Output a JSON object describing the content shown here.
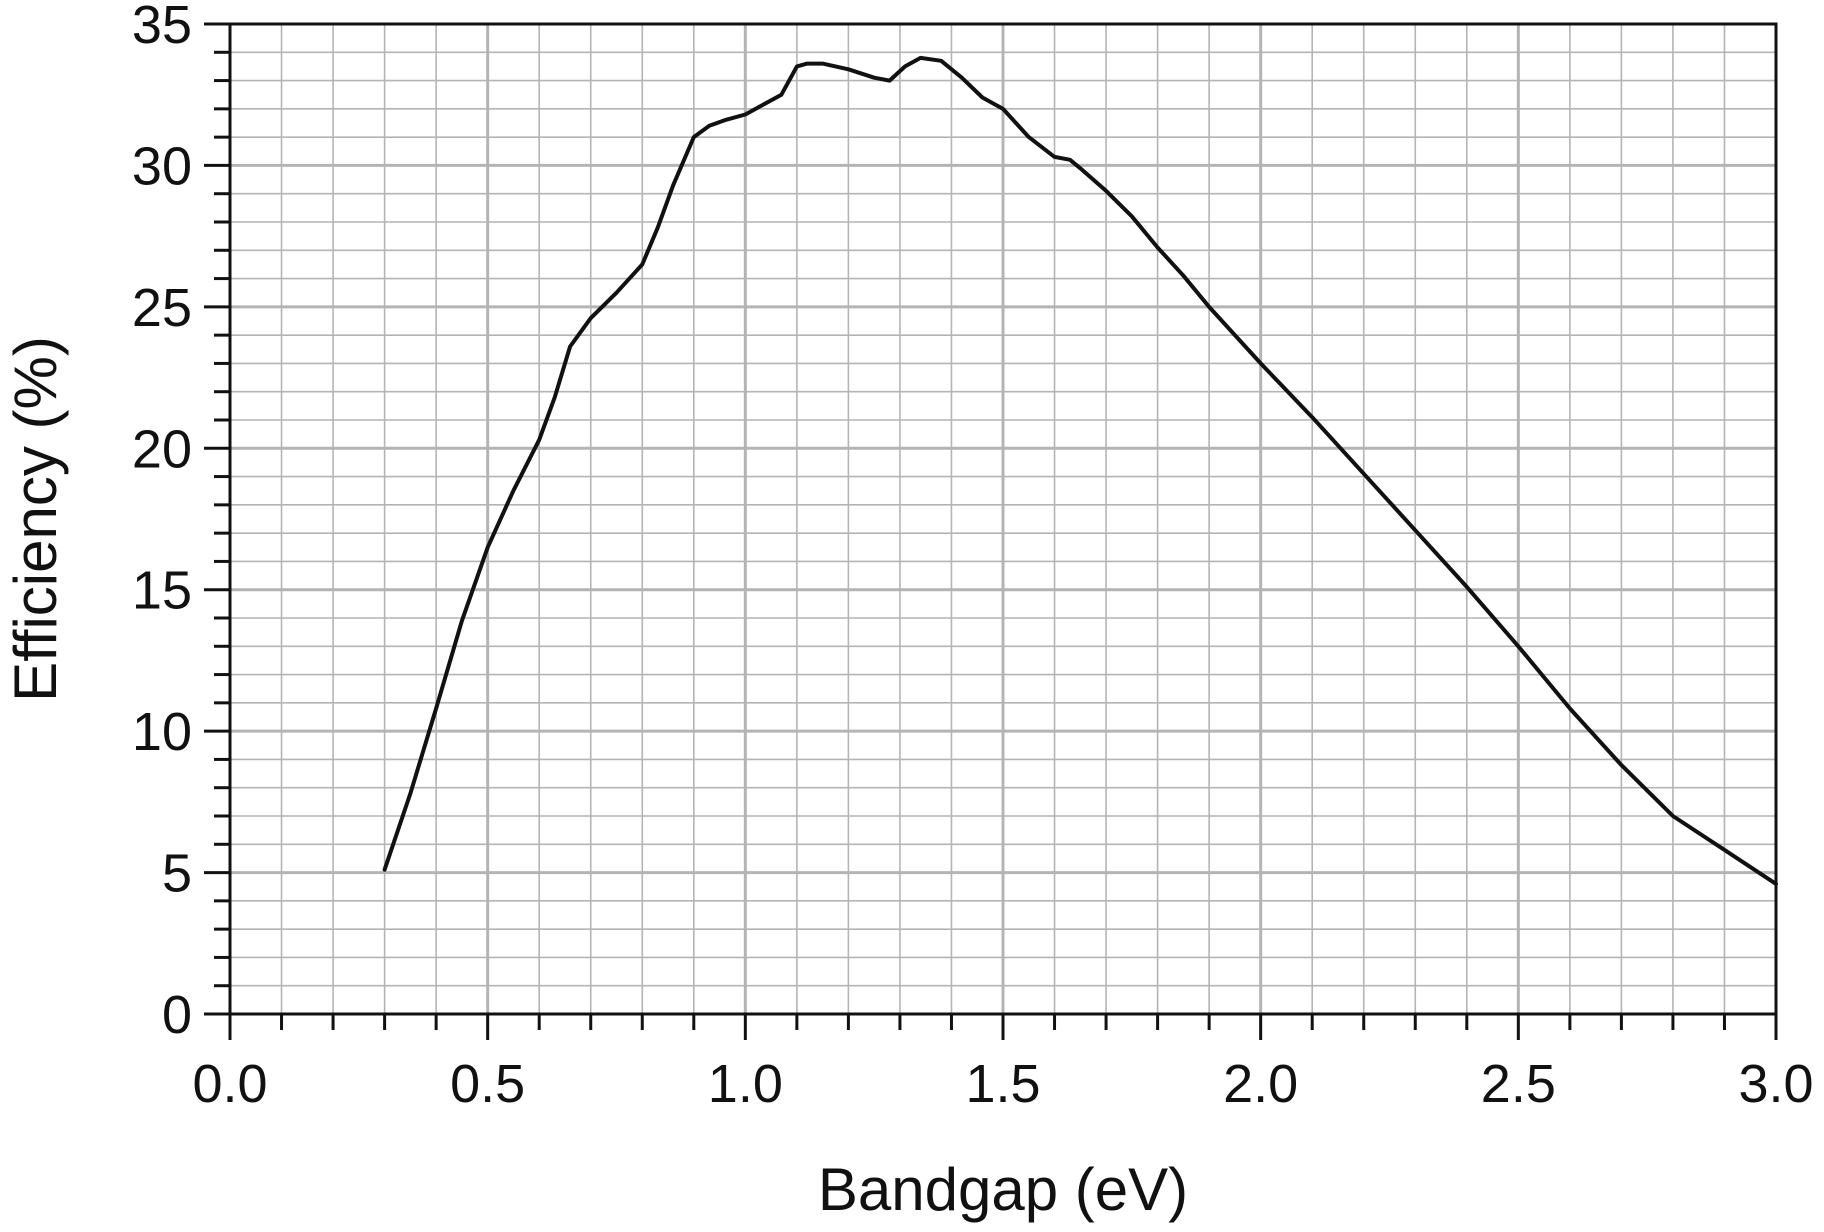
{
  "chart_data": {
    "type": "line",
    "title": "",
    "xlabel": "Bandgap (eV)",
    "ylabel": "Efficiency (%)",
    "xlim": [
      0.0,
      3.0
    ],
    "ylim": [
      0,
      35
    ],
    "x_major_ticks": [
      0.0,
      0.5,
      1.0,
      1.5,
      2.0,
      2.5,
      3.0
    ],
    "x_tick_labels": [
      "0.0",
      "0.5",
      "1.0",
      "1.5",
      "2.0",
      "2.5",
      "3.0"
    ],
    "x_minor_step": 0.1,
    "y_major_ticks": [
      0,
      5,
      10,
      15,
      20,
      25,
      30,
      35
    ],
    "y_tick_labels": [
      "0",
      "5",
      "10",
      "15",
      "20",
      "25",
      "30",
      "35"
    ],
    "y_minor_step": 1,
    "grid": true,
    "legend": "none",
    "colors": {
      "line": "#111111",
      "grid": "#b4b4b4",
      "axis": "#111111"
    },
    "series": [
      {
        "x": [
          0.3,
          0.35,
          0.4,
          0.45,
          0.5,
          0.55,
          0.6,
          0.63,
          0.66,
          0.7,
          0.75,
          0.8,
          0.83,
          0.86,
          0.9,
          0.93,
          0.96,
          1.0,
          1.03,
          1.07,
          1.1,
          1.12,
          1.15,
          1.2,
          1.25,
          1.28,
          1.31,
          1.34,
          1.38,
          1.42,
          1.46,
          1.5,
          1.55,
          1.6,
          1.63,
          1.65,
          1.7,
          1.75,
          1.8,
          1.85,
          1.9,
          1.95,
          2.0,
          2.1,
          2.2,
          2.3,
          2.4,
          2.5,
          2.6,
          2.7,
          2.8,
          2.9,
          3.0
        ],
        "y": [
          5.1,
          7.8,
          10.8,
          13.9,
          16.5,
          18.5,
          20.3,
          21.8,
          23.6,
          24.6,
          25.5,
          26.5,
          27.8,
          29.3,
          31.0,
          31.4,
          31.6,
          31.8,
          32.1,
          32.5,
          33.5,
          33.6,
          33.6,
          33.4,
          33.1,
          33.0,
          33.5,
          33.8,
          33.7,
          33.1,
          32.4,
          32.0,
          31.0,
          30.3,
          30.2,
          29.9,
          29.1,
          28.2,
          27.1,
          26.1,
          25.0,
          24.0,
          23.0,
          21.1,
          19.1,
          17.1,
          15.1,
          13.0,
          10.8,
          8.8,
          7.0,
          5.8,
          4.6
        ]
      }
    ]
  }
}
